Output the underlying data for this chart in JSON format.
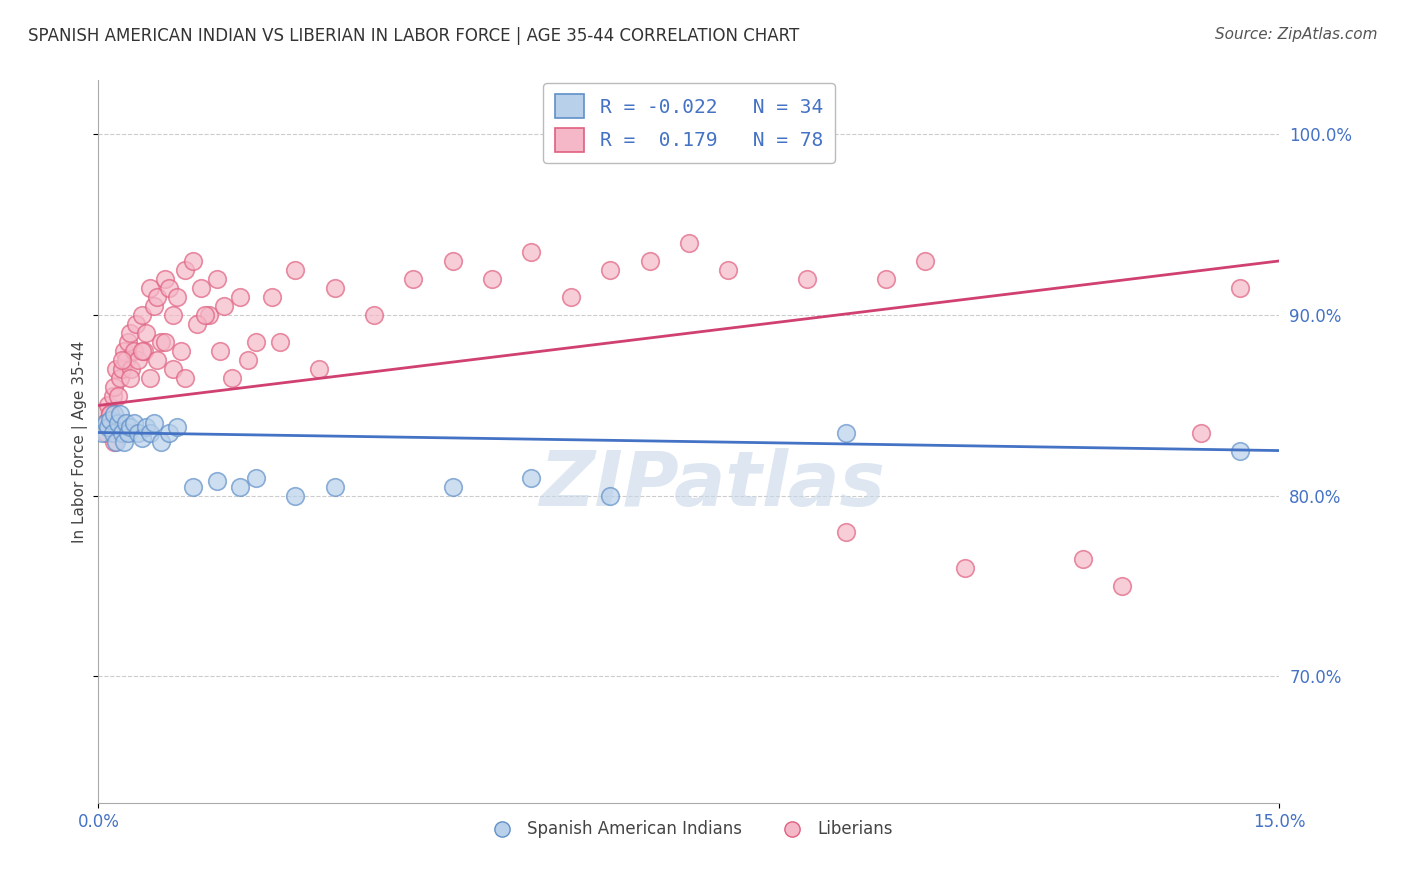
{
  "title": "SPANISH AMERICAN INDIAN VS LIBERIAN IN LABOR FORCE | AGE 35-44 CORRELATION CHART",
  "source": "Source: ZipAtlas.com",
  "ylabel": "In Labor Force | Age 35-44",
  "xlim": [
    0.0,
    15.0
  ],
  "ylim": [
    63.0,
    103.0
  ],
  "ytick_positions": [
    70.0,
    80.0,
    90.0,
    100.0
  ],
  "yticklabels": [
    "70.0%",
    "80.0%",
    "90.0%",
    "100.0%"
  ],
  "blue_R": -0.022,
  "blue_N": 34,
  "pink_R": 0.179,
  "pink_N": 78,
  "blue_color": "#b8d0ea",
  "pink_color": "#f5b8c8",
  "blue_edge_color": "#6090c8",
  "pink_edge_color": "#e06080",
  "blue_line_color": "#4472c4",
  "pink_line_color": "#d04070",
  "legend_label_blue": "Spanish American Indians",
  "legend_label_pink": "Liberians",
  "watermark": "ZIPatlas",
  "blue_scatter_x": [
    0.05,
    0.1,
    0.12,
    0.15,
    0.18,
    0.2,
    0.22,
    0.25,
    0.28,
    0.3,
    0.32,
    0.35,
    0.38,
    0.4,
    0.45,
    0.5,
    0.55,
    0.6,
    0.65,
    0.7,
    0.8,
    0.9,
    1.0,
    1.2,
    1.5,
    1.8,
    2.0,
    2.5,
    3.0,
    4.5,
    5.5,
    6.5,
    9.5,
    14.5
  ],
  "blue_scatter_y": [
    83.5,
    84.0,
    83.8,
    84.2,
    83.5,
    84.5,
    83.0,
    84.0,
    84.5,
    83.5,
    83.0,
    84.0,
    83.5,
    83.8,
    84.0,
    83.5,
    83.2,
    83.8,
    83.5,
    84.0,
    83.0,
    83.5,
    83.8,
    80.5,
    80.8,
    80.5,
    81.0,
    80.0,
    80.5,
    80.5,
    81.0,
    80.0,
    83.5,
    82.5
  ],
  "pink_scatter_x": [
    0.05,
    0.08,
    0.1,
    0.12,
    0.15,
    0.18,
    0.2,
    0.22,
    0.25,
    0.28,
    0.3,
    0.32,
    0.35,
    0.38,
    0.4,
    0.42,
    0.45,
    0.48,
    0.5,
    0.55,
    0.58,
    0.6,
    0.65,
    0.7,
    0.75,
    0.8,
    0.85,
    0.9,
    0.95,
    1.0,
    1.05,
    1.1,
    1.2,
    1.3,
    1.4,
    1.5,
    1.6,
    1.8,
    2.0,
    2.2,
    2.5,
    3.0,
    3.5,
    4.0,
    4.5,
    5.0,
    6.0,
    6.5,
    7.0,
    7.5,
    8.0,
    9.0,
    9.5,
    10.0,
    10.5,
    11.0,
    12.5,
    13.0,
    14.0,
    14.5,
    0.15,
    0.2,
    0.3,
    0.4,
    0.55,
    0.65,
    0.75,
    0.85,
    0.95,
    1.1,
    1.25,
    1.35,
    1.55,
    1.7,
    1.9,
    2.3,
    2.8,
    5.5
  ],
  "pink_scatter_y": [
    84.5,
    84.0,
    83.5,
    85.0,
    84.5,
    85.5,
    86.0,
    87.0,
    85.5,
    86.5,
    87.0,
    88.0,
    87.5,
    88.5,
    89.0,
    87.0,
    88.0,
    89.5,
    87.5,
    90.0,
    88.0,
    89.0,
    91.5,
    90.5,
    91.0,
    88.5,
    92.0,
    91.5,
    90.0,
    91.0,
    88.0,
    92.5,
    93.0,
    91.5,
    90.0,
    92.0,
    90.5,
    91.0,
    88.5,
    91.0,
    92.5,
    91.5,
    90.0,
    92.0,
    93.0,
    92.0,
    91.0,
    92.5,
    93.0,
    94.0,
    92.5,
    92.0,
    78.0,
    92.0,
    93.0,
    76.0,
    76.5,
    75.0,
    83.5,
    91.5,
    84.5,
    83.0,
    87.5,
    86.5,
    88.0,
    86.5,
    87.5,
    88.5,
    87.0,
    86.5,
    89.5,
    90.0,
    88.0,
    86.5,
    87.5,
    88.5,
    87.0,
    93.5
  ],
  "blue_trend_x": [
    0.0,
    15.0
  ],
  "blue_trend_y": [
    83.5,
    82.5
  ],
  "pink_trend_x": [
    0.0,
    15.0
  ],
  "pink_trend_y": [
    85.0,
    93.0
  ],
  "grid_color": "#cccccc",
  "background_color": "#ffffff",
  "title_fontsize": 12,
  "axis_fontsize": 11,
  "tick_fontsize": 12,
  "source_fontsize": 11,
  "watermark_fontsize": 55,
  "watermark_color": "#c8d8e8",
  "watermark_alpha": 0.6,
  "dot_size": 160,
  "dot_linewidth": 1.2,
  "dot_alpha": 0.7
}
